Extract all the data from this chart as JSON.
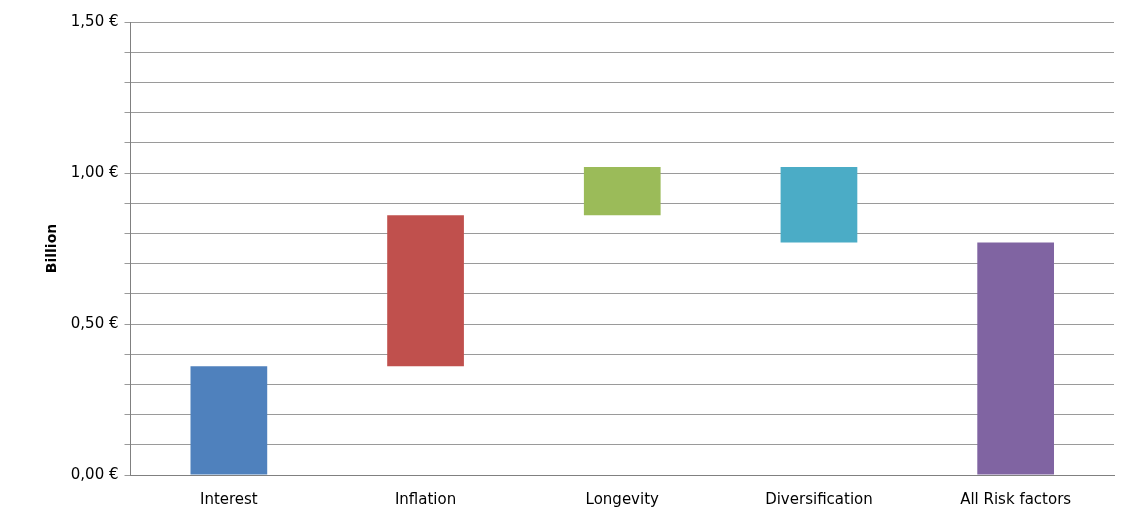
{
  "chart_data": {
    "type": "bar",
    "ylabel": "Billion",
    "categories": [
      "Interest",
      "Inflation",
      "Longevity",
      "Diversification",
      "All Risk factors"
    ],
    "values": [
      0.36,
      0.5,
      0.16,
      -0.25,
      0.77
    ],
    "base": [
      0,
      0.36,
      0.86,
      1.02,
      0
    ],
    "colors": [
      "#4f81bd",
      "#c0504d",
      "#9bbb59",
      "#4bacc6",
      "#8064a2"
    ],
    "ylim": [
      0,
      1.5
    ],
    "yticks": [
      {
        "value": 0,
        "label": "0,00 €"
      },
      {
        "value": 0.1,
        "label": null
      },
      {
        "value": 0.2,
        "label": null
      },
      {
        "value": 0.3,
        "label": null
      },
      {
        "value": 0.4,
        "label": null
      },
      {
        "value": 0.5,
        "label": "0,50 €"
      },
      {
        "value": 0.6,
        "label": null
      },
      {
        "value": 0.7,
        "label": null
      },
      {
        "value": 0.8,
        "label": null
      },
      {
        "value": 0.9,
        "label": null
      },
      {
        "value": 1,
        "label": "1,00 €"
      },
      {
        "value": 1.1,
        "label": null
      },
      {
        "value": 1.2,
        "label": null
      },
      {
        "value": 1.3,
        "label": null
      },
      {
        "value": 1.4,
        "label": null
      },
      {
        "value": 1.5,
        "label": "1,50 €"
      }
    ],
    "grid": "y",
    "legend": false
  }
}
